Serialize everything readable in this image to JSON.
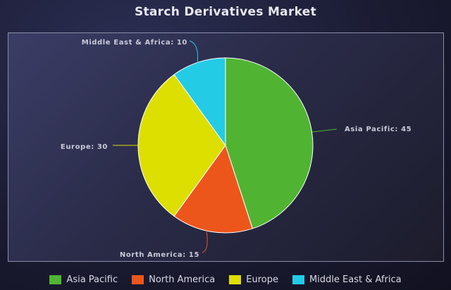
{
  "chart_data": {
    "type": "pie",
    "title": "Starch Derivatives Market",
    "categories": [
      "Asia Pacific",
      "North America",
      "Europe",
      "Middle East & Africa"
    ],
    "values": [
      45,
      15,
      30,
      10
    ],
    "colors": [
      "#50b432",
      "#ed561b",
      "#dddf00",
      "#24cbe5"
    ],
    "data_labels": [
      "Asia Pacific: 45",
      "North America: 15",
      "Europe: 30",
      "Middle East & Africa: 10"
    ],
    "legend": {
      "position": "bottom",
      "items": [
        "Asia Pacific",
        "North America",
        "Europe",
        "Middle East & Africa"
      ]
    }
  }
}
